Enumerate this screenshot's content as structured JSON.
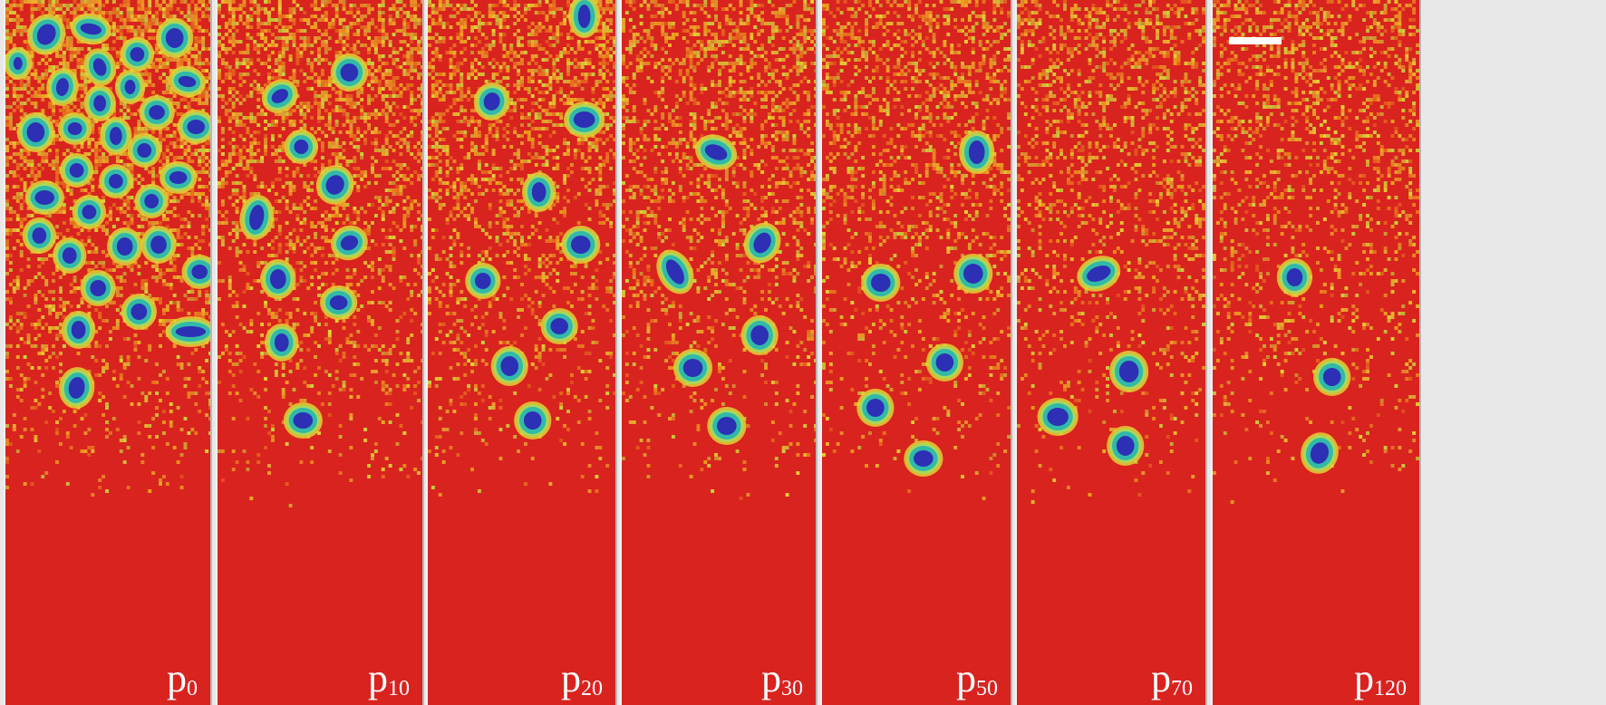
{
  "colors": {
    "background": "#d9231f",
    "noise": [
      "#e8711f",
      "#eea31f",
      "#e4d034",
      "#c9d23d",
      "#f0b62c"
    ],
    "halo": "#a8d85a",
    "ring": "#31b9a9",
    "core": "#2d2fb5",
    "label": "#ffffff",
    "scale_bar": "#ffffff"
  },
  "panels": [
    {
      "label_base": "p",
      "label_sub": "0",
      "noise_level": 0.55
    },
    {
      "label_base": "p",
      "label_sub": "10",
      "noise_level": 0.42
    },
    {
      "label_base": "p",
      "label_sub": "20",
      "noise_level": 0.4
    },
    {
      "label_base": "p",
      "label_sub": "30",
      "noise_level": 0.36
    },
    {
      "label_base": "p",
      "label_sub": "50",
      "noise_level": 0.34
    },
    {
      "label_base": "p",
      "label_sub": "70",
      "noise_level": 0.32
    },
    {
      "label_base": "p",
      "label_sub": "120",
      "noise_level": 0.3
    }
  ]
}
